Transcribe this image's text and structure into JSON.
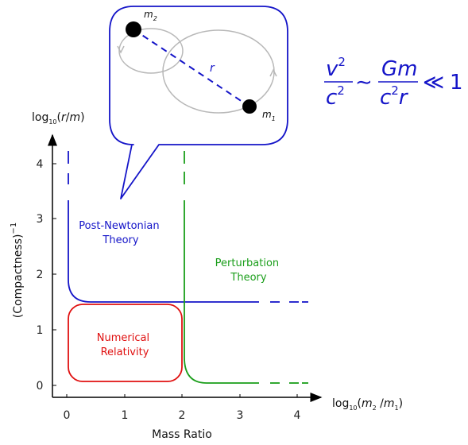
{
  "diagram": {
    "x_axis": {
      "label_prefix": "log",
      "label_sub": "10",
      "label_open": "(",
      "label_m2": "m",
      "label_m2_sub": "2",
      "label_slash": " /",
      "label_m1": "m",
      "label_m1_sub": "1",
      "label_close": ")",
      "title": "Mass Ratio",
      "ticks": [
        "0",
        "1",
        "2",
        "3",
        "4"
      ]
    },
    "y_axis": {
      "label_prefix": "log",
      "label_sub": "10",
      "label_open": "(",
      "label_rm": "r",
      "label_slash": "/",
      "label_m": "m",
      "label_close": ")",
      "title_main": "(Compactness)",
      "title_sup": "−1",
      "ticks": [
        "0",
        "1",
        "2",
        "3",
        "4"
      ]
    },
    "regions": {
      "post_newtonian": {
        "line1": "Post-Newtonian",
        "line2": "Theory"
      },
      "perturbation": {
        "line1": "Perturbation",
        "line2": "Theory"
      },
      "numerical": {
        "line1": "Numerical",
        "line2": "Relativity"
      }
    },
    "bubble": {
      "mass2_label": "m",
      "mass2_sub": "2",
      "mass1_label": "m",
      "mass1_sub": "1",
      "separation_label": "r"
    },
    "equation": {
      "lhs_num": "v",
      "lhs_num_sup": "2",
      "lhs_den": "c",
      "lhs_den_sup": "2",
      "sim": "∼",
      "rhs_num": "Gm",
      "rhs_den_c": "c",
      "rhs_den_sup": "2",
      "rhs_den_r": "r",
      "ll": "≪",
      "one": "1"
    },
    "colors": {
      "post_newtonian": "#1414c8",
      "perturbation": "#1a9e1a",
      "numerical": "#e01010",
      "orbit": "#b8b8b8",
      "axis": "#000000"
    }
  }
}
